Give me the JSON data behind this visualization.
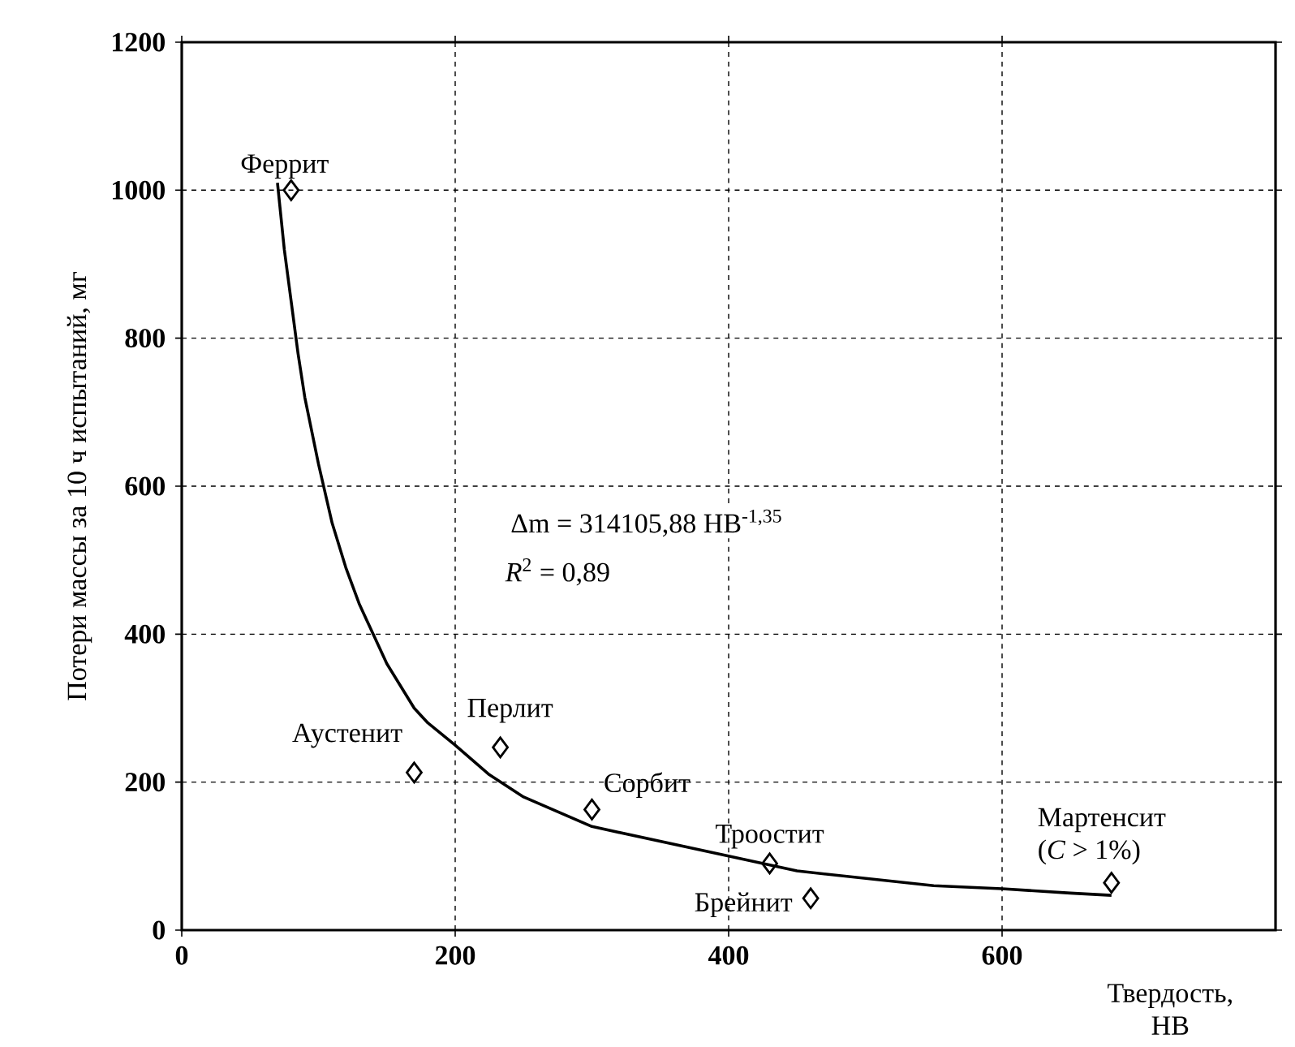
{
  "chart_data": {
    "type": "scatter",
    "xlabel": "Твердость, HB",
    "ylabel": "Потери массы за 10 ч испытаний, мг",
    "xlim": [
      0,
      800
    ],
    "xticks": [
      0,
      200,
      400,
      600
    ],
    "ylim": [
      0,
      1200
    ],
    "yticks": [
      0,
      200,
      400,
      600,
      800,
      1000,
      1200
    ],
    "grid": true,
    "series": [
      {
        "color": "#000000",
        "marker": "diamond",
        "x": [
          80,
          170,
          233,
          300,
          430,
          460,
          680
        ],
        "values": [
          1000,
          213,
          247,
          163,
          90,
          43,
          64
        ]
      },
      {
        "type": "line",
        "color": "#000000",
        "marker": "none",
        "line_style": "solid",
        "x": [
          70,
          75,
          80,
          85,
          90,
          100,
          110,
          120,
          130,
          140,
          150,
          160,
          170,
          180,
          200,
          225,
          250,
          275,
          300,
          350,
          400,
          450,
          500,
          550,
          600,
          650,
          680
        ],
        "values": [
          1010,
          920,
          850,
          780,
          720,
          630,
          550,
          490,
          440,
          400,
          360,
          330,
          300,
          280,
          250,
          210,
          180,
          160,
          140,
          120,
          100,
          80,
          70,
          60,
          56,
          50,
          47
        ]
      }
    ],
    "annotations": [
      "Δm = 314105,88 HB$^{-1,35}$",
      "*R*$^{2}$ = 0,89",
      {
        "text": "Феррит",
        "x": 80,
        "y": 1000
      },
      {
        "text": "Аустенит",
        "x": 170,
        "y": 213
      },
      {
        "text": "Перлит",
        "x": 233,
        "y": 247
      },
      {
        "text": "Сорбит",
        "x": 300,
        "y": 163
      },
      {
        "text": "Троостит",
        "x": 430,
        "y": 90
      },
      {
        "text": "Брейнит",
        "x": 460,
        "y": 43
      },
      {
        "text": "Мартенсит (*C* > 1%)",
        "x": 680,
        "y": 64
      }
    ]
  }
}
